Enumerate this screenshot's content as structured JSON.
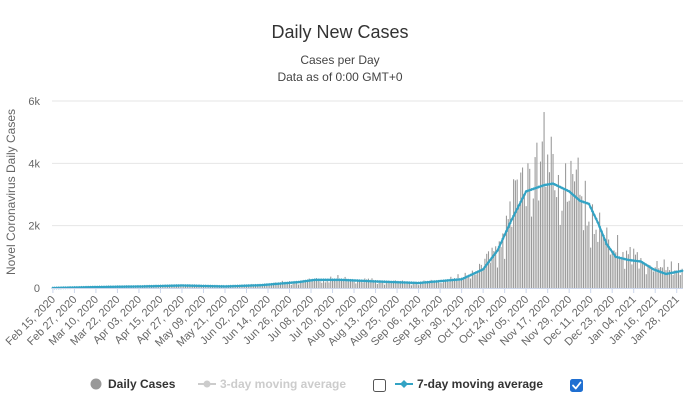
{
  "chart_data": {
    "type": "bar",
    "title": "Daily New Cases",
    "subtitle": "Cases per Day",
    "subtitle2": "Data as of 0:00 GMT+0",
    "ylabel": "Novel Coronavirus Daily Cases",
    "xlabel": "",
    "ylim": [
      0,
      6000
    ],
    "yticks": [
      {
        "value": 0,
        "label": "0"
      },
      {
        "value": 2000,
        "label": "2k"
      },
      {
        "value": 4000,
        "label": "4k"
      },
      {
        "value": 6000,
        "label": "6k"
      }
    ],
    "x_tick_labels": [
      "Feb 15, 2020",
      "Feb 27, 2020",
      "Mar 10, 2020",
      "Mar 22, 2020",
      "Apr 03, 2020",
      "Apr 15, 2020",
      "Apr 27, 2020",
      "May 09, 2020",
      "May 21, 2020",
      "Jun 02, 2020",
      "Jun 14, 2020",
      "Jun 26, 2020",
      "Jul 08, 2020",
      "Jul 20, 2020",
      "Aug 01, 2020",
      "Aug 13, 2020",
      "Aug 25, 2020",
      "Sep 06, 2020",
      "Sep 18, 2020",
      "Sep 30, 2020",
      "Oct 12, 2020",
      "Oct 24, 2020",
      "Nov 05, 2020",
      "Nov 17, 2020",
      "Nov 29, 2020",
      "Dec 11, 2020",
      "Dec 23, 2020",
      "Jan 04, 2021",
      "Jan 16, 2021",
      "Jan 28, 2021"
    ],
    "grid": true,
    "legend_position": "bottom-center",
    "colors": {
      "bars": "#999999",
      "ma3": "#cccccc",
      "ma7": "#33a3c4",
      "checkbox_checked": "#1f6fd1"
    },
    "daily_cases": {
      "name": "Daily Cases",
      "anchors": [
        [
          "2020-02-15",
          0
        ],
        [
          "2020-03-10",
          20
        ],
        [
          "2020-04-05",
          50
        ],
        [
          "2020-04-27",
          80
        ],
        [
          "2020-05-21",
          60
        ],
        [
          "2020-06-10",
          100
        ],
        [
          "2020-07-01",
          200
        ],
        [
          "2020-07-20",
          280
        ],
        [
          "2020-08-13",
          220
        ],
        [
          "2020-09-06",
          150
        ],
        [
          "2020-09-30",
          300
        ],
        [
          "2020-10-12",
          700
        ],
        [
          "2020-10-20",
          1300
        ],
        [
          "2020-10-28",
          2500
        ],
        [
          "2020-11-05",
          3500
        ],
        [
          "2020-11-15",
          3700
        ],
        [
          "2020-11-22",
          3400
        ],
        [
          "2020-11-29",
          3100
        ],
        [
          "2020-12-08",
          2800
        ],
        [
          "2020-12-15",
          1800
        ],
        [
          "2020-12-23",
          1200
        ],
        [
          "2021-01-01",
          1000
        ],
        [
          "2021-01-10",
          800
        ],
        [
          "2021-01-20",
          600
        ],
        [
          "2021-01-31",
          700
        ]
      ],
      "peaks": [
        [
          "2020-11-06",
          4000
        ],
        [
          "2020-11-10",
          4200
        ],
        [
          "2020-11-14",
          4700
        ],
        [
          "2020-11-20",
          4300
        ],
        [
          "2020-11-27",
          4000
        ],
        [
          "2020-12-03",
          3800
        ],
        [
          "2020-12-26",
          1700
        ]
      ]
    },
    "moving_average_3day": {
      "name": "3-day moving average",
      "visible": false
    },
    "moving_average_7day": {
      "name": "7-day moving average",
      "visible": true,
      "points": [
        [
          "2020-02-15",
          0
        ],
        [
          "2020-03-10",
          30
        ],
        [
          "2020-04-05",
          50
        ],
        [
          "2020-04-27",
          80
        ],
        [
          "2020-05-21",
          50
        ],
        [
          "2020-06-10",
          90
        ],
        [
          "2020-07-01",
          190
        ],
        [
          "2020-07-10",
          260
        ],
        [
          "2020-07-25",
          260
        ],
        [
          "2020-08-13",
          210
        ],
        [
          "2020-09-06",
          160
        ],
        [
          "2020-09-30",
          280
        ],
        [
          "2020-10-12",
          600
        ],
        [
          "2020-10-20",
          1200
        ],
        [
          "2020-10-28",
          2200
        ],
        [
          "2020-11-05",
          3100
        ],
        [
          "2020-11-15",
          3300
        ],
        [
          "2020-11-20",
          3350
        ],
        [
          "2020-11-29",
          3100
        ],
        [
          "2020-12-05",
          2800
        ],
        [
          "2020-12-10",
          2700
        ],
        [
          "2020-12-15",
          2100
        ],
        [
          "2020-12-20",
          1400
        ],
        [
          "2020-12-25",
          1000
        ],
        [
          "2021-01-01",
          900
        ],
        [
          "2021-01-08",
          850
        ],
        [
          "2021-01-15",
          600
        ],
        [
          "2021-01-22",
          450
        ],
        [
          "2021-01-31",
          550
        ]
      ]
    },
    "legend": {
      "items": [
        {
          "label": "Daily Cases",
          "active": true
        },
        {
          "label": "3-day moving average",
          "active": false,
          "checked": false
        },
        {
          "label": "7-day moving average",
          "active": true,
          "checked": true
        }
      ]
    }
  }
}
